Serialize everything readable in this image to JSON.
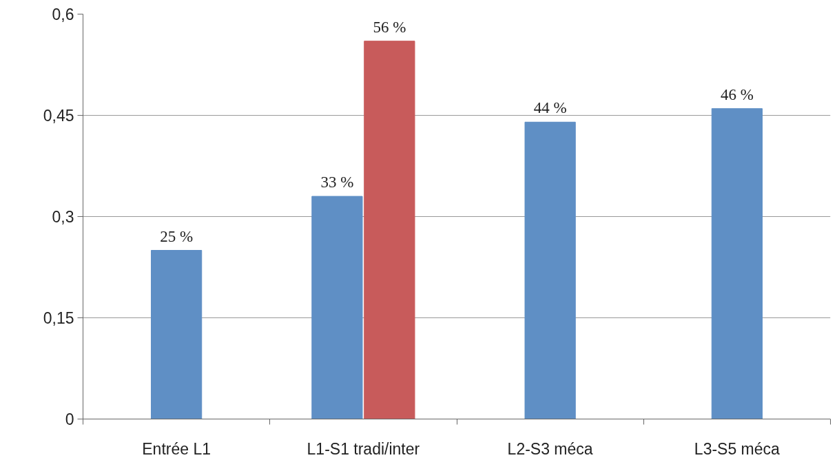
{
  "chart_data": {
    "type": "bar",
    "categories": [
      "Entrée L1",
      "L1-S1 tradi/inter",
      "L2-S3 méca",
      "L3-S5 méca"
    ],
    "series": [
      {
        "color": "#5f8fc5",
        "values": [
          0.25,
          0.33,
          0.44,
          0.46
        ],
        "value_labels": [
          "25 %",
          "33 %",
          "44 %",
          "46 %"
        ]
      },
      {
        "color": "#c85b5b",
        "values": [
          null,
          0.56,
          null,
          null
        ],
        "value_labels": [
          null,
          "56 %",
          null,
          null
        ]
      }
    ],
    "ylim": [
      0,
      0.6
    ],
    "yticks": [
      {
        "value": 0,
        "label": "0"
      },
      {
        "value": 0.15,
        "label": "0,15"
      },
      {
        "value": 0.3,
        "label": "0,3"
      },
      {
        "value": 0.45,
        "label": "0,45"
      },
      {
        "value": 0.6,
        "label": "0,6"
      }
    ],
    "grid": "y"
  }
}
